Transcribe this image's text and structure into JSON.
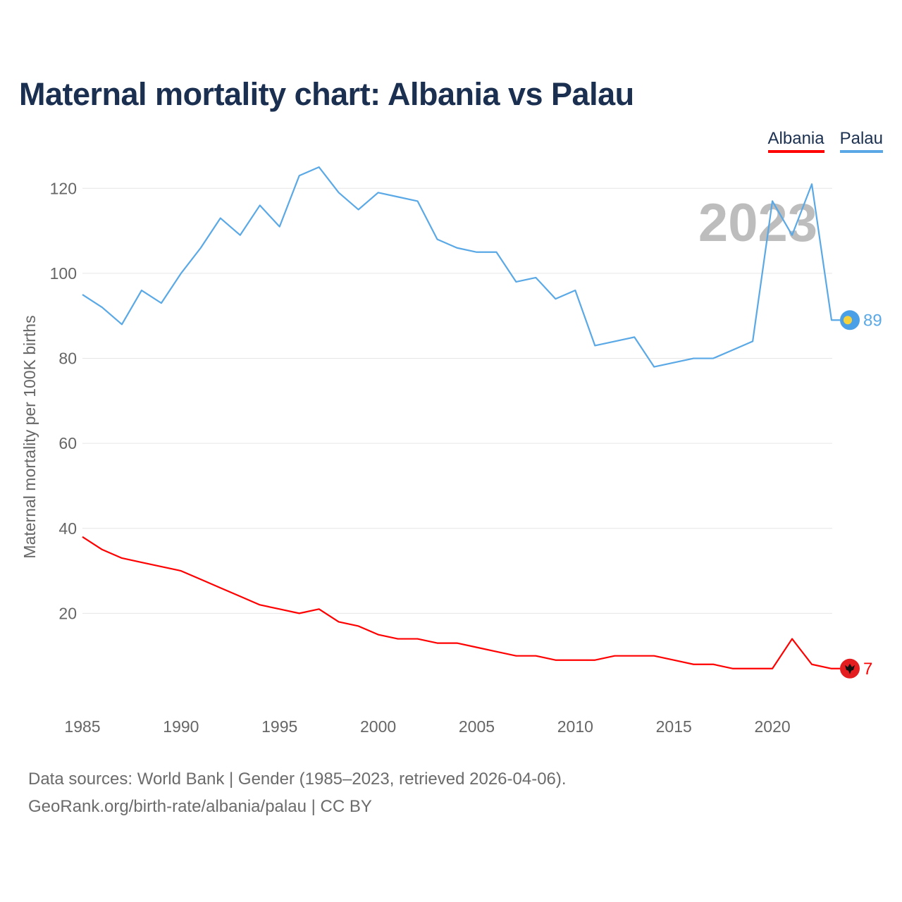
{
  "title": "Maternal mortality chart: Albania vs Palau",
  "legend": [
    {
      "name": "Albania",
      "color": "#ff0000"
    },
    {
      "name": "Palau",
      "color": "#5aa9e6"
    }
  ],
  "chart_data": {
    "type": "line",
    "title": "Maternal mortality chart: Albania vs Palau",
    "xlabel": "",
    "ylabel": "Maternal mortality per 100K births",
    "year_label": "2023",
    "xlim": [
      1985,
      2023
    ],
    "ylim": [
      0,
      130
    ],
    "x_ticks": [
      1985,
      1990,
      1995,
      2000,
      2005,
      2010,
      2015,
      2020
    ],
    "y_ticks": [
      20,
      40,
      60,
      80,
      100,
      120
    ],
    "grid": true,
    "x": [
      1985,
      1986,
      1987,
      1988,
      1989,
      1990,
      1991,
      1992,
      1993,
      1994,
      1995,
      1996,
      1997,
      1998,
      1999,
      2000,
      2001,
      2002,
      2003,
      2004,
      2005,
      2006,
      2007,
      2008,
      2009,
      2010,
      2011,
      2012,
      2013,
      2014,
      2015,
      2016,
      2017,
      2018,
      2019,
      2020,
      2021,
      2022,
      2023
    ],
    "series": [
      {
        "name": "Albania",
        "color": "#ff0000",
        "end_label": "7",
        "values": [
          38,
          35,
          33,
          32,
          31,
          30,
          28,
          26,
          24,
          22,
          21,
          20,
          21,
          18,
          17,
          15,
          14,
          14,
          13,
          13,
          12,
          11,
          10,
          10,
          9,
          9,
          9,
          10,
          10,
          10,
          9,
          8,
          8,
          7,
          7,
          7,
          14,
          8,
          7
        ]
      },
      {
        "name": "Palau",
        "color": "#5aa9e6",
        "end_label": "89",
        "values": [
          95,
          92,
          88,
          96,
          93,
          100,
          106,
          113,
          109,
          116,
          111,
          123,
          125,
          119,
          115,
          119,
          118,
          117,
          108,
          106,
          105,
          105,
          98,
          99,
          94,
          96,
          83,
          84,
          85,
          78,
          79,
          80,
          80,
          82,
          84,
          117,
          109,
          121,
          89
        ]
      }
    ]
  },
  "footer": {
    "line1": "Data sources: World Bank | Gender (1985–2023, retrieved 2026-04-06).",
    "line2": "GeoRank.org/birth-rate/albania/palau | CC BY"
  }
}
